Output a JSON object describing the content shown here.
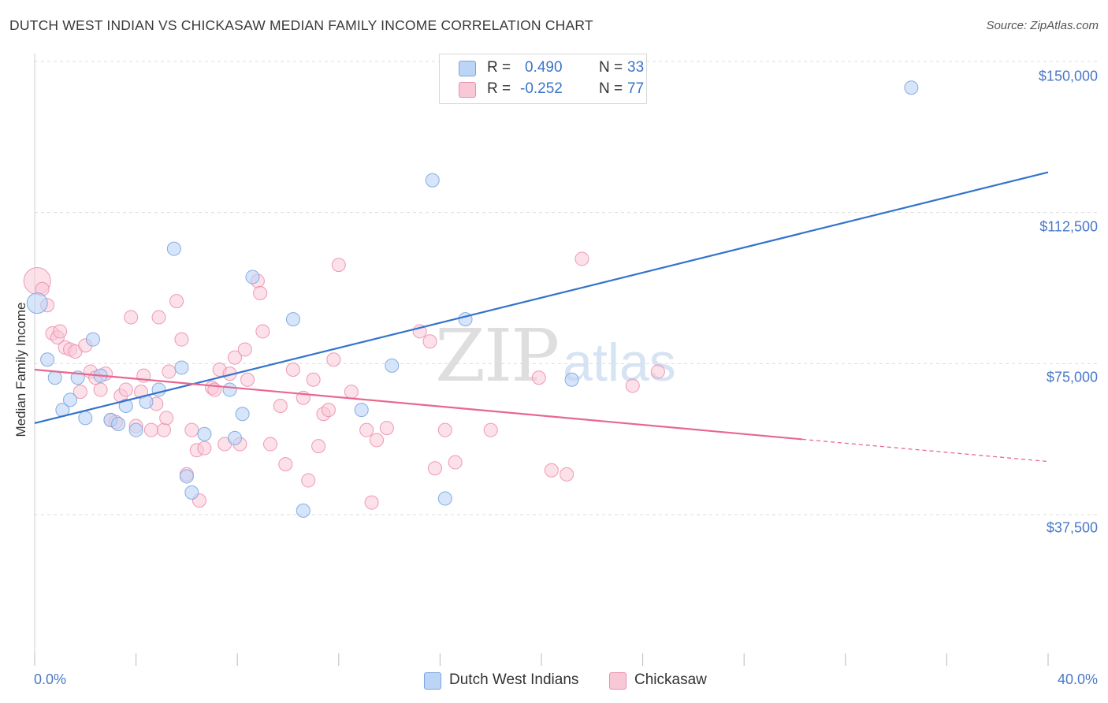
{
  "title": "DUTCH WEST INDIAN VS CHICKASAW MEDIAN FAMILY INCOME CORRELATION CHART",
  "source": "Source: ZipAtlas.com",
  "watermark": {
    "zip": "ZIP",
    "atlas": "atlas"
  },
  "colors": {
    "blue_fill": "#bcd4f6",
    "blue_stroke": "#7aa5e0",
    "blue_line": "#3373cc",
    "pink_fill": "#f9c8d7",
    "pink_stroke": "#ec8fae",
    "pink_line": "#e8678f",
    "grid": "#dddddd",
    "tick_text": "#4a78c8"
  },
  "legend": {
    "rows": [
      {
        "r_label": "R =",
        "r_value": "0.490",
        "n_label": "N =",
        "n_value": "33"
      },
      {
        "r_label": "R =",
        "r_value": "-0.252",
        "n_label": "N =",
        "n_value": "77"
      }
    ]
  },
  "series_labels": [
    "Dutch West Indians",
    "Chickasaw"
  ],
  "chart_data": {
    "type": "scatter",
    "title": "DUTCH WEST INDIAN VS CHICKASAW MEDIAN FAMILY INCOME CORRELATION CHART",
    "xlabel": "",
    "ylabel": "Median Family Income",
    "xlim": [
      0,
      40
    ],
    "ylim": [
      0,
      150000
    ],
    "x_tick_labels": [
      "0.0%",
      "40.0%"
    ],
    "y_ticks": [
      37500,
      75000,
      112500,
      150000
    ],
    "y_tick_labels": [
      "$37,500",
      "$75,000",
      "$112,500",
      "$150,000"
    ],
    "grid": true,
    "legend_position": "top-center",
    "series": [
      {
        "name": "Dutch West Indians",
        "r": 0.49,
        "n": 33,
        "trend": {
          "x": [
            0,
            40
          ],
          "y": [
            60200,
            122500
          ]
        },
        "points": [
          [
            0.1,
            90000
          ],
          [
            0.5,
            76000
          ],
          [
            0.8,
            71500
          ],
          [
            1.1,
            63500
          ],
          [
            1.4,
            66000
          ],
          [
            1.7,
            71500
          ],
          [
            2.0,
            61500
          ],
          [
            2.3,
            81000
          ],
          [
            2.6,
            72000
          ],
          [
            3.0,
            61000
          ],
          [
            3.3,
            60000
          ],
          [
            3.6,
            64500
          ],
          [
            4.0,
            58500
          ],
          [
            4.4,
            65500
          ],
          [
            4.9,
            68500
          ],
          [
            5.5,
            103500
          ],
          [
            5.8,
            74000
          ],
          [
            6.0,
            47000
          ],
          [
            6.2,
            43000
          ],
          [
            6.7,
            57500
          ],
          [
            7.7,
            68500
          ],
          [
            7.9,
            56500
          ],
          [
            8.2,
            62500
          ],
          [
            8.6,
            96500
          ],
          [
            10.2,
            86000
          ],
          [
            10.6,
            38500
          ],
          [
            12.9,
            63500
          ],
          [
            14.1,
            74500
          ],
          [
            15.7,
            120500
          ],
          [
            16.2,
            41500
          ],
          [
            17.0,
            86000
          ],
          [
            21.2,
            71000
          ],
          [
            34.6,
            143500
          ]
        ]
      },
      {
        "name": "Chickasaw",
        "r": -0.252,
        "n": 77,
        "trend": {
          "x": [
            0,
            30.3
          ],
          "y": [
            73500,
            56200
          ]
        },
        "trend_dashed": {
          "x": [
            30.3,
            40
          ],
          "y": [
            56200,
            50700
          ]
        },
        "points": [
          [
            0.1,
            95500
          ],
          [
            0.3,
            93500
          ],
          [
            0.5,
            89500
          ],
          [
            0.7,
            82500
          ],
          [
            0.9,
            81500
          ],
          [
            1.0,
            83000
          ],
          [
            1.2,
            79000
          ],
          [
            1.4,
            78500
          ],
          [
            1.6,
            78000
          ],
          [
            1.8,
            68000
          ],
          [
            2.0,
            79500
          ],
          [
            2.2,
            73000
          ],
          [
            2.4,
            71500
          ],
          [
            2.6,
            68500
          ],
          [
            2.8,
            72500
          ],
          [
            3.0,
            61000
          ],
          [
            3.2,
            60500
          ],
          [
            3.4,
            67000
          ],
          [
            3.6,
            68500
          ],
          [
            3.8,
            86500
          ],
          [
            4.0,
            59500
          ],
          [
            4.2,
            68000
          ],
          [
            4.3,
            72000
          ],
          [
            4.6,
            58500
          ],
          [
            4.8,
            65000
          ],
          [
            4.9,
            86500
          ],
          [
            5.1,
            58500
          ],
          [
            5.2,
            61500
          ],
          [
            5.3,
            73000
          ],
          [
            5.6,
            90500
          ],
          [
            5.8,
            81000
          ],
          [
            6.0,
            47500
          ],
          [
            6.2,
            58500
          ],
          [
            6.4,
            53500
          ],
          [
            6.5,
            41000
          ],
          [
            6.7,
            54000
          ],
          [
            7.0,
            69000
          ],
          [
            7.1,
            68500
          ],
          [
            7.3,
            73500
          ],
          [
            7.5,
            55000
          ],
          [
            7.7,
            72500
          ],
          [
            7.9,
            76500
          ],
          [
            8.1,
            55000
          ],
          [
            8.3,
            78500
          ],
          [
            8.4,
            71000
          ],
          [
            8.8,
            95500
          ],
          [
            8.9,
            92500
          ],
          [
            9.0,
            83000
          ],
          [
            9.3,
            55000
          ],
          [
            9.7,
            64500
          ],
          [
            9.9,
            50000
          ],
          [
            10.2,
            73500
          ],
          [
            10.6,
            66500
          ],
          [
            10.8,
            46000
          ],
          [
            11.0,
            71000
          ],
          [
            11.2,
            54500
          ],
          [
            11.4,
            62500
          ],
          [
            11.6,
            63500
          ],
          [
            11.8,
            76000
          ],
          [
            12.0,
            99500
          ],
          [
            12.5,
            68000
          ],
          [
            13.1,
            58500
          ],
          [
            13.3,
            40500
          ],
          [
            13.5,
            56000
          ],
          [
            13.9,
            59000
          ],
          [
            15.2,
            83000
          ],
          [
            15.6,
            80500
          ],
          [
            15.8,
            49000
          ],
          [
            16.2,
            58500
          ],
          [
            16.6,
            50500
          ],
          [
            18.0,
            58500
          ],
          [
            20.4,
            48500
          ],
          [
            21.0,
            47500
          ],
          [
            21.6,
            101000
          ],
          [
            23.6,
            69500
          ],
          [
            24.6,
            73000
          ],
          [
            19.9,
            71500
          ]
        ]
      }
    ]
  }
}
